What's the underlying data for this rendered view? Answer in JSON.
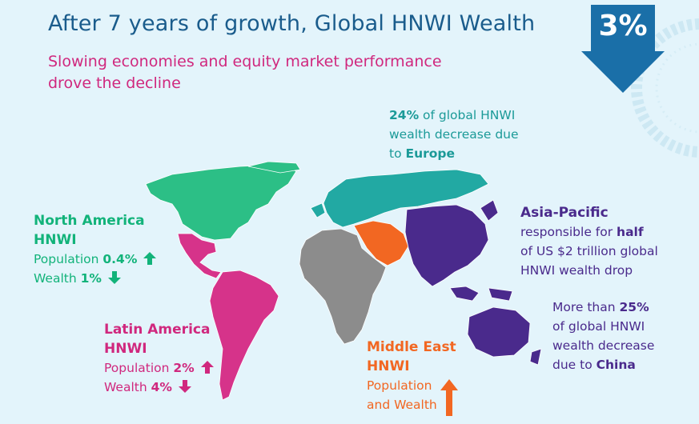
{
  "header": {
    "title": "After 7 years of growth, Global HNWI Wealth",
    "change_value": "3%",
    "change_direction": "down",
    "subtitle_line1": "Slowing economies and equity market performance",
    "subtitle_line2": "drove the decline"
  },
  "europe": {
    "pct": "24%",
    "line1": "of global HNWI",
    "line2": "wealth decrease due",
    "line3": "to",
    "region": "Europe"
  },
  "north_america": {
    "title_line1": "North America",
    "title_line2": "HNWI",
    "population_label": "Population",
    "population_value": "0.4%",
    "population_direction": "up",
    "wealth_label": "Wealth",
    "wealth_value": "1%",
    "wealth_direction": "down"
  },
  "latin_america": {
    "title_line1": "Latin America",
    "title_line2": "HNWI",
    "population_label": "Population",
    "population_value": "2%",
    "population_direction": "up",
    "wealth_label": "Wealth",
    "wealth_value": "4%",
    "wealth_direction": "down"
  },
  "middle_east": {
    "title_line1": "Middle East",
    "title_line2": "HNWI",
    "line1": "Population",
    "line2": "and Wealth",
    "direction": "up"
  },
  "asia_pacific": {
    "title": "Asia-Pacific",
    "line1": "responsible for",
    "emphasis": "half",
    "line2": "of US $2 trillion global",
    "line3": "HNWI wealth drop"
  },
  "china": {
    "line1": "More than",
    "pct": "25%",
    "line2": "of global HNWI",
    "line3": "wealth decrease",
    "line4": "due to",
    "region": "China"
  },
  "colors": {
    "title": "#1a5c8c",
    "arrow": "#1a6fa8",
    "north_america": "#12b37a",
    "latin_america": "#d0287e",
    "europe": "#1b9a98",
    "middle_east": "#f26722",
    "asia_pacific": "#4a2a8c",
    "africa": "#8c8c8c"
  }
}
